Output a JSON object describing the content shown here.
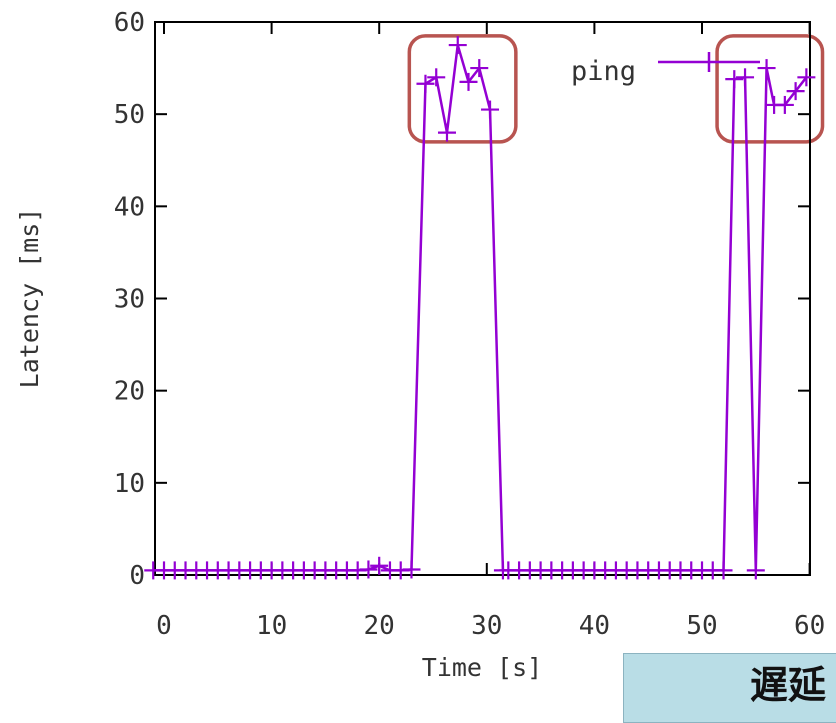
{
  "chart_data": {
    "type": "line",
    "xlabel": "Time [s]",
    "ylabel": "Latency [ms]",
    "xlim": [
      0,
      60
    ],
    "ylim": [
      0,
      60
    ],
    "xticks": [
      "0",
      "10",
      "20",
      "30",
      "40",
      "50",
      "60"
    ],
    "yticks": [
      "0",
      "10",
      "20",
      "30",
      "40",
      "50",
      "60"
    ],
    "grid": false,
    "legend_position": "top-right",
    "series": [
      {
        "name": "ping",
        "color": "#9400d3",
        "points": [
          [
            -1,
            0.5
          ],
          [
            0,
            0.5
          ],
          [
            1,
            0.5
          ],
          [
            2,
            0.5
          ],
          [
            3,
            0.5
          ],
          [
            4,
            0.5
          ],
          [
            5,
            0.5
          ],
          [
            6,
            0.5
          ],
          [
            7,
            0.5
          ],
          [
            8,
            0.5
          ],
          [
            9,
            0.5
          ],
          [
            10,
            0.5
          ],
          [
            11,
            0.5
          ],
          [
            12,
            0.5
          ],
          [
            13,
            0.5
          ],
          [
            14,
            0.5
          ],
          [
            15,
            0.5
          ],
          [
            16,
            0.5
          ],
          [
            17,
            0.5
          ],
          [
            18,
            0.5
          ],
          [
            19,
            0.6
          ],
          [
            20,
            1.0
          ],
          [
            21,
            0.5
          ],
          [
            22,
            0.5
          ],
          [
            23,
            0.6
          ],
          [
            24.3,
            53.3
          ],
          [
            25.3,
            54.0
          ],
          [
            26.3,
            48.0
          ],
          [
            27.3,
            57.5
          ],
          [
            28.3,
            53.5
          ],
          [
            29.3,
            55.0
          ],
          [
            30.3,
            50.5
          ],
          [
            31.5,
            0.5
          ],
          [
            32,
            0.5
          ],
          [
            33,
            0.5
          ],
          [
            34,
            0.5
          ],
          [
            35,
            0.5
          ],
          [
            36,
            0.5
          ],
          [
            37,
            0.5
          ],
          [
            38,
            0.5
          ],
          [
            39,
            0.5
          ],
          [
            40,
            0.5
          ],
          [
            41,
            0.5
          ],
          [
            42,
            0.5
          ],
          [
            43,
            0.5
          ],
          [
            44,
            0.5
          ],
          [
            45,
            0.5
          ],
          [
            46,
            0.5
          ],
          [
            47,
            0.5
          ],
          [
            48,
            0.5
          ],
          [
            49,
            0.5
          ],
          [
            50,
            0.5
          ],
          [
            51,
            0.5
          ],
          [
            52,
            0.5
          ],
          [
            53.0,
            53.8
          ],
          [
            54.0,
            54.0
          ],
          [
            55.0,
            0.5
          ],
          [
            56.0,
            55.0
          ],
          [
            56.7,
            51.0
          ],
          [
            57.7,
            51.0
          ],
          [
            58.7,
            52.5
          ],
          [
            59.7,
            54.0
          ]
        ]
      }
    ],
    "highlights": [
      {
        "x": [
          22.8,
          32.7
        ],
        "y": [
          47.0,
          58.5
        ],
        "color": "#b85450"
      },
      {
        "x": [
          51.4,
          61.2
        ],
        "y": [
          47.0,
          58.5
        ],
        "color": "#b85450"
      }
    ]
  },
  "banner": {
    "text": "遅延"
  }
}
